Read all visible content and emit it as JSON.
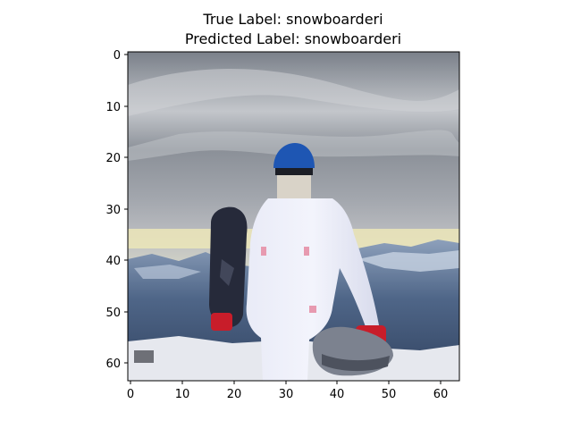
{
  "title": {
    "true_label_line": "True Label: snowboarderi",
    "predicted_label_line": "Predicted Label: snowboarderi"
  },
  "image_content": {
    "subject": "person in white ski suit and blue beanie holding a snowboard",
    "scene": "snowy mountain summit under cloudy sky",
    "resolution_note": "64x64 pixelated image"
  },
  "axes": {
    "x_ticks": [
      "0",
      "10",
      "20",
      "30",
      "40",
      "50",
      "60"
    ],
    "y_ticks": [
      "0",
      "10",
      "20",
      "30",
      "40",
      "50",
      "60"
    ],
    "x_range": [
      -0.5,
      63.5
    ],
    "y_range": [
      -0.5,
      63.5
    ],
    "y_inverted": true
  },
  "colors": {
    "sky_top": "#7d838c",
    "sky_mid": "#a9adb3",
    "horizon_yellow": "#e8e2b6",
    "mountains": "#5a6f8f",
    "snow": "#e6e8ee",
    "jacket": "#eceefa",
    "beanie": "#1e56b3",
    "snowboard": "#262a3a",
    "gloves": "#c81d2a"
  }
}
